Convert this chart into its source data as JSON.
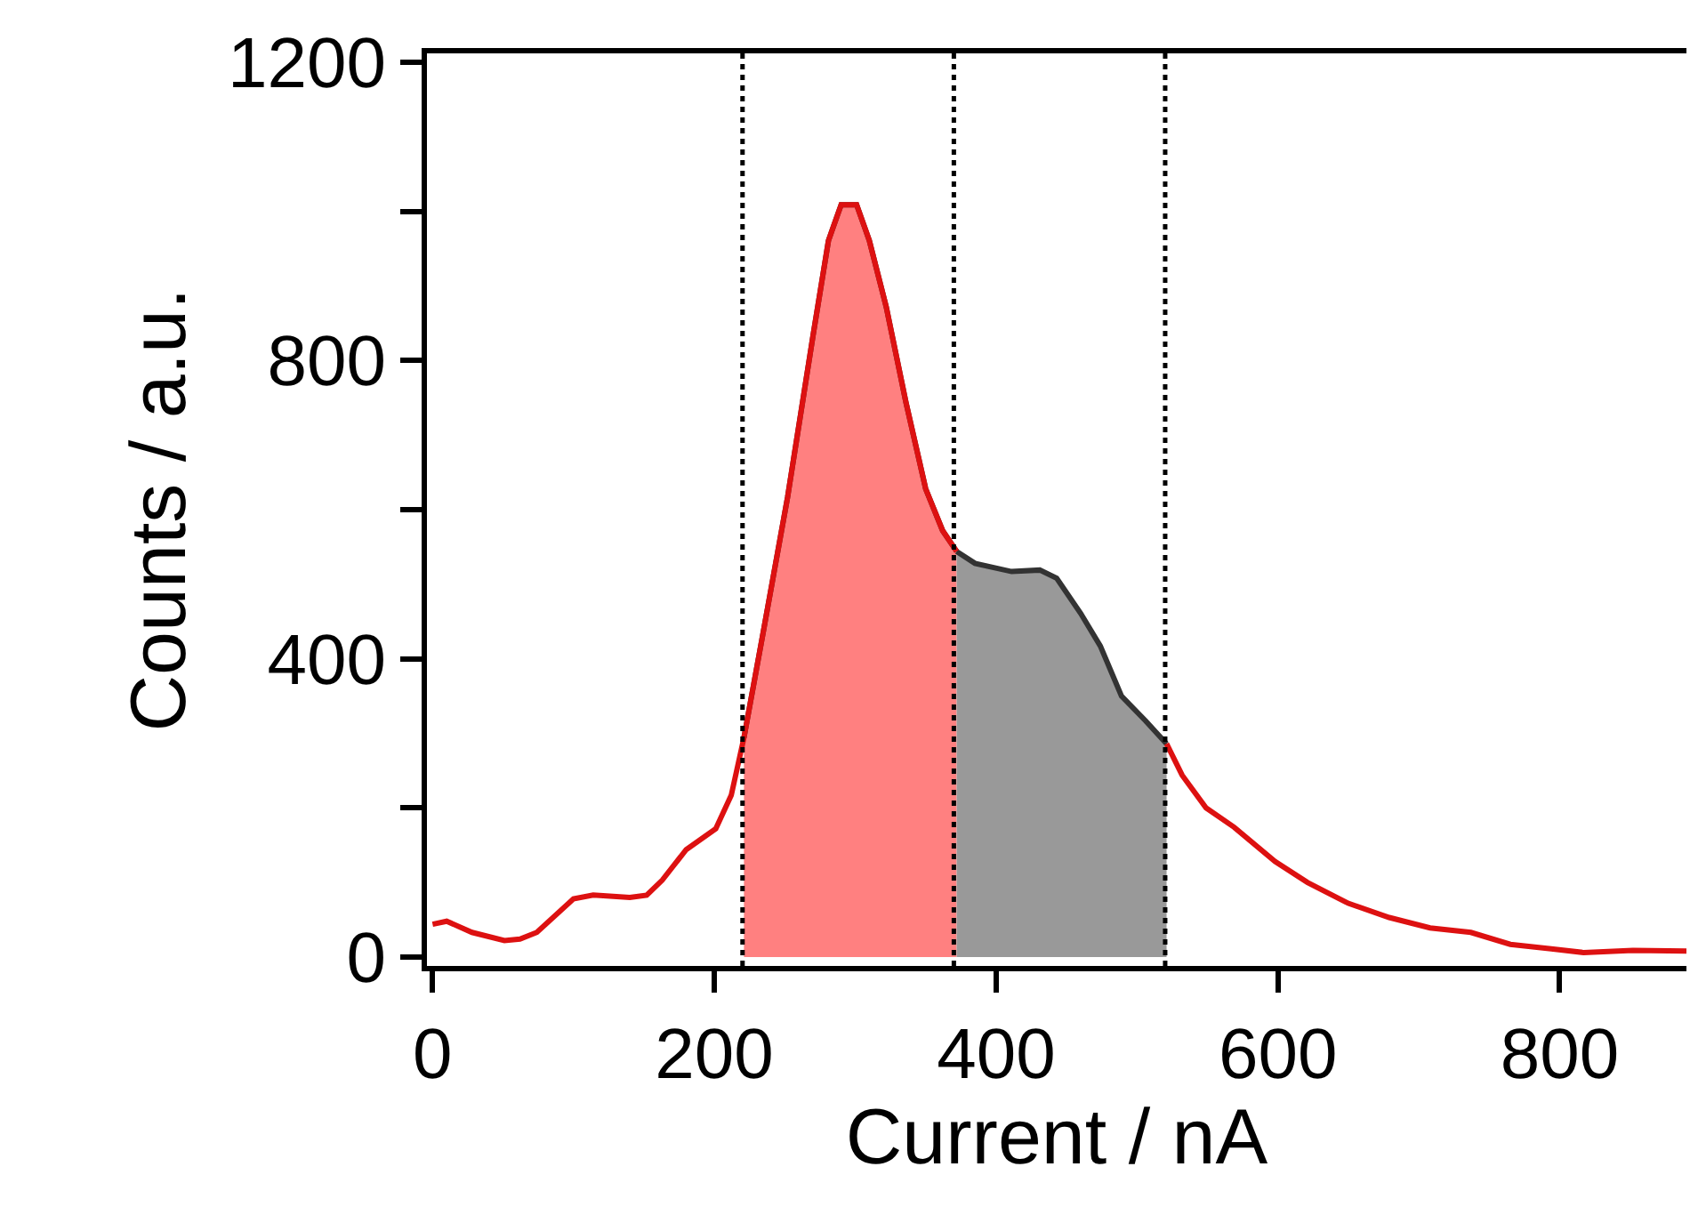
{
  "chart_data": {
    "type": "line",
    "xlabel": "Current / nA",
    "ylabel": "Counts / a.u.",
    "xlim": [
      -4,
      890
    ],
    "ylim": [
      -12,
      1212
    ],
    "xticks": [
      0,
      200,
      400,
      600,
      800
    ],
    "yticks": [
      0,
      {
        "value": 200,
        "label": null
      },
      400,
      {
        "value": 600,
        "label": null
      },
      800,
      {
        "value": 1000,
        "label": null
      },
      1200
    ],
    "marker": "none",
    "line_style": "solid",
    "series": [
      {
        "type": "area",
        "color": "#ff8080",
        "x": [
          221,
          235,
          252,
          270,
          281,
          290,
          301,
          310,
          322,
          336,
          350,
          362,
          372
        ],
        "values": [
          294,
          439,
          617,
          833,
          961,
          1009,
          1009,
          961,
          872,
          744,
          628,
          572,
          544
        ]
      },
      {
        "type": "area",
        "color": "#999999",
        "x": [
          372,
          385,
          411,
          431,
          443,
          460,
          474,
          489,
          506,
          521
        ],
        "values": [
          544,
          528,
          517,
          519,
          508,
          461,
          417,
          350,
          317,
          286
        ]
      },
      {
        "color": "#dd1111",
        "x": [
          0,
          10,
          28,
          51,
          62,
          74,
          100,
          114,
          140,
          152,
          163,
          180,
          201,
          212,
          221,
          235,
          252,
          270,
          281,
          290,
          301,
          310,
          322,
          336,
          350,
          362,
          372,
          450,
          521,
          532,
          549,
          569,
          598,
          621,
          650,
          679,
          708,
          737,
          765,
          794,
          817,
          852,
          890
        ],
        "values": [
          44,
          48,
          33,
          22,
          24,
          33,
          78,
          83,
          80,
          83,
          103,
          144,
          172,
          217,
          294,
          439,
          617,
          833,
          961,
          1009,
          1009,
          961,
          872,
          744,
          628,
          572,
          544,
          null,
          286,
          244,
          200,
          174,
          128,
          100,
          72,
          53,
          39,
          33,
          17,
          11,
          6,
          9,
          8
        ]
      }
    ],
    "ref_lines": [
      {
        "axis": "x",
        "value": 220,
        "color": "#000000",
        "line_style": "dotted"
      },
      {
        "axis": "x",
        "value": 370,
        "color": "#000000",
        "line_style": "dotted"
      },
      {
        "axis": "x",
        "value": 520,
        "color": "#000000",
        "line_style": "dotted"
      }
    ]
  }
}
